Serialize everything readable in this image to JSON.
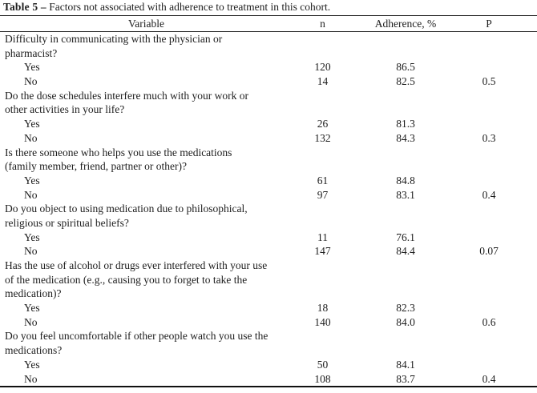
{
  "title": {
    "label": "Table 5 –",
    "text": "Factors not associated with adherence to treatment in this cohort."
  },
  "headers": {
    "variable": "Variable",
    "n": "n",
    "adherence": "Adherence, %",
    "p": "P"
  },
  "sections": [
    {
      "question_lines": [
        "Difficulty in communicating with the physician or",
        "pharmacist?"
      ],
      "rows": [
        {
          "label": "Yes",
          "n": "120",
          "adherence": "86.5",
          "p": ""
        },
        {
          "label": "No",
          "n": "14",
          "adherence": "82.5",
          "p": "0.5"
        }
      ]
    },
    {
      "question_lines": [
        "Do the dose schedules interfere much with your work or",
        "other activities in your life?"
      ],
      "rows": [
        {
          "label": "Yes",
          "n": "26",
          "adherence": "81.3",
          "p": ""
        },
        {
          "label": "No",
          "n": "132",
          "adherence": "84.3",
          "p": "0.3"
        }
      ]
    },
    {
      "question_lines": [
        "Is there someone who helps you use the medications",
        "(family member, friend, partner or other)?"
      ],
      "rows": [
        {
          "label": "Yes",
          "n": "61",
          "adherence": "84.8",
          "p": ""
        },
        {
          "label": "No",
          "n": "97",
          "adherence": "83.1",
          "p": "0.4"
        }
      ]
    },
    {
      "question_lines": [
        "Do you object to using medication due to philosophical,",
        "religious or spiritual beliefs?"
      ],
      "rows": [
        {
          "label": "Yes",
          "n": "11",
          "adherence": "76.1",
          "p": ""
        },
        {
          "label": "No",
          "n": "147",
          "adherence": "84.4",
          "p": "0.07"
        }
      ]
    },
    {
      "question_lines": [
        "Has the use of alcohol or drugs ever interfered with your use",
        "of the medication (e.g., causing you to forget to take the",
        "medication)?"
      ],
      "rows": [
        {
          "label": "Yes",
          "n": "18",
          "adherence": "82.3",
          "p": ""
        },
        {
          "label": "No",
          "n": "140",
          "adherence": "84.0",
          "p": "0.6"
        }
      ]
    },
    {
      "question_lines": [
        "Do you feel uncomfortable if other people watch you use the",
        "medications?"
      ],
      "rows": [
        {
          "label": "Yes",
          "n": "50",
          "adherence": "84.1",
          "p": ""
        },
        {
          "label": "No",
          "n": "108",
          "adherence": "83.7",
          "p": "0.4"
        }
      ]
    }
  ],
  "chart_data": {
    "type": "table",
    "title": "Table 5 – Factors not associated with adherence to treatment in this cohort.",
    "columns": [
      "Variable",
      "n",
      "Adherence, %",
      "P"
    ],
    "rows": [
      [
        "Difficulty in communicating with the physician or pharmacist? — Yes",
        120,
        86.5,
        null
      ],
      [
        "Difficulty in communicating with the physician or pharmacist? — No",
        14,
        82.5,
        0.5
      ],
      [
        "Do the dose schedules interfere much with your work or other activities in your life? — Yes",
        26,
        81.3,
        null
      ],
      [
        "Do the dose schedules interfere much with your work or other activities in your life? — No",
        132,
        84.3,
        0.3
      ],
      [
        "Is there someone who helps you use the medications (family member, friend, partner or other)? — Yes",
        61,
        84.8,
        null
      ],
      [
        "Is there someone who helps you use the medications (family member, friend, partner or other)? — No",
        97,
        83.1,
        0.4
      ],
      [
        "Do you object to using medication due to philosophical, religious or spiritual beliefs? — Yes",
        11,
        76.1,
        null
      ],
      [
        "Do you object to using medication due to philosophical, religious or spiritual beliefs? — No",
        147,
        84.4,
        0.07
      ],
      [
        "Has the use of alcohol or drugs ever interfered with your use of the medication (e.g., causing you to forget to take the medication)? — Yes",
        18,
        82.3,
        null
      ],
      [
        "Has the use of alcohol or drugs ever interfered with your use of the medication (e.g., causing you to forget to take the medication)? — No",
        140,
        84.0,
        0.6
      ],
      [
        "Do you feel uncomfortable if other people watch you use the medications? — Yes",
        50,
        84.1,
        null
      ],
      [
        "Do you feel uncomfortable if other people watch you use the medications? — No",
        108,
        83.7,
        0.4
      ]
    ]
  }
}
